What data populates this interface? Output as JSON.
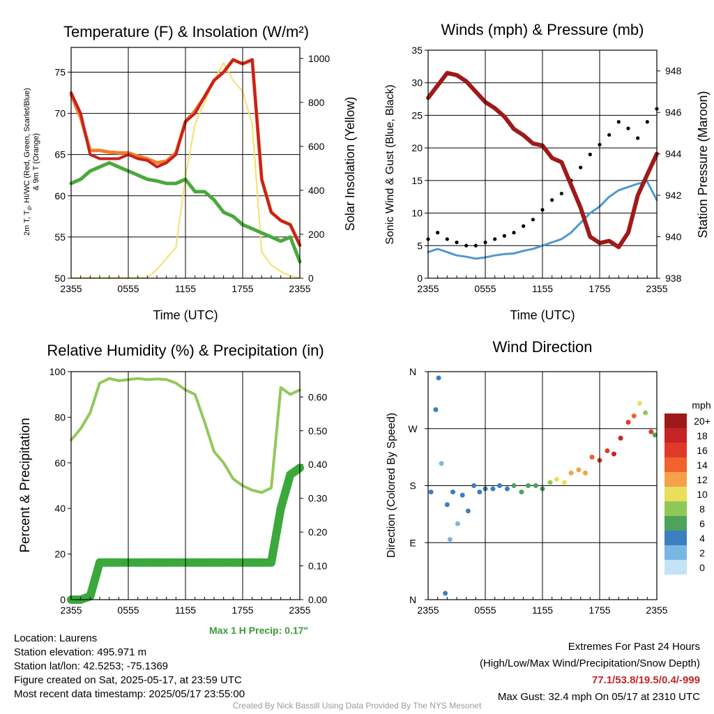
{
  "titles": {
    "temp": "Temperature (F) & Insolation (W/m²)",
    "wind": "Winds (mph) & Pressure (mb)",
    "rh": "Relative Humidity (%) & Precipitation (in)",
    "dir": "Wind Direction"
  },
  "axis_labels": {
    "temp_left_1": "2m T, T",
    "temp_left_sub": "d",
    "temp_left_2": ", HI/WC (Red, Green, Scarlet/Blue)",
    "temp_left_3": "& 9m T (Orange)",
    "temp_right": "Solar Insolation (Yellow)",
    "wind_left": "Sonic Wind & Gust (Blue, Black)",
    "wind_right": "Station Pressure (Maroon)",
    "rh_left": "Percent & Precipitation",
    "dir_left": "Direction (Colored By Speed)",
    "time": "Time (UTC)"
  },
  "time_ticks": [
    "2355",
    "0555",
    "1155",
    "1755",
    "2355"
  ],
  "colorbar": {
    "unit": "mph",
    "labels": [
      "20+",
      "18",
      "16",
      "14",
      "12",
      "10",
      "8",
      "6",
      "4",
      "2",
      "0"
    ],
    "colors": [
      "#9e1a1a",
      "#c42424",
      "#e0392b",
      "#f0622e",
      "#f5a04a",
      "#e8df5a",
      "#8ec957",
      "#4ea25a",
      "#3a7fc1",
      "#7ab6e2",
      "#c4e3f5"
    ]
  },
  "colors": {
    "temp": "#c8201e",
    "t9m": "#f07f2a",
    "dew": "#4aa83c",
    "wc": "#3a7fc1",
    "solar": "#f5e06a",
    "wind": "#4e98d2",
    "gust": "#000000",
    "pressure": "#9e1a1a",
    "rh": "#92c85a",
    "precip": "#3aa83a"
  },
  "info": {
    "location": "Location: Laurens",
    "elevation": "Station elevation: 495.971 m",
    "latlon": "Station lat/lon: 42.5253; -75.1369",
    "created": "Figure created on Sat, 2025-05-17, at 23:59 UTC",
    "recent": "Most recent data timestamp: 2025/05/17 23:55:00"
  },
  "max_precip": "Max 1 H Precip: 0.17\"",
  "extremes": {
    "title": "Extremes For Past 24 Hours",
    "subtitle": "(High/Low/Max Wind/Precipitation/Snow Depth)",
    "values": "77.1/53.8/19.5/0.4/-999",
    "gust": "Max Gust: 32.4 mph On 05/17 at 2310 UTC"
  },
  "credit": "Created By Nick Bassill Using Data Provided By The NYS Mesonet",
  "chart_data": [
    {
      "type": "line",
      "title": "Temperature (F) & Insolation (W/m²)",
      "xlabel": "Time (UTC)",
      "x": [
        0,
        1,
        2,
        3,
        4,
        5,
        6,
        7,
        8,
        9,
        10,
        11,
        12,
        13,
        14,
        15,
        16,
        17,
        18,
        19,
        20,
        21,
        22,
        23,
        24
      ],
      "ylim": [
        50,
        78
      ],
      "y2lim": [
        0,
        1050
      ],
      "series": [
        {
          "key": "temp",
          "axis": "left",
          "values": [
            72.5,
            70,
            65,
            64.5,
            64.5,
            64.5,
            65,
            64.5,
            64.3,
            63.5,
            64,
            65,
            69,
            70,
            72,
            74,
            75,
            76.5,
            76,
            76.5,
            62,
            58,
            57,
            56.5,
            54
          ]
        },
        {
          "key": "t9m",
          "axis": "left",
          "values": [
            72.3,
            69.5,
            65.5,
            65.5,
            65.3,
            65.2,
            65.2,
            64.8,
            64.5,
            64,
            64.2,
            65.2,
            69,
            70.3,
            72,
            74,
            75,
            76.5,
            76,
            76.5,
            62,
            58,
            57,
            56.5,
            54
          ]
        },
        {
          "key": "dew",
          "axis": "left",
          "values": [
            61.5,
            62,
            63,
            63.5,
            64,
            63.5,
            63,
            62.5,
            62,
            61.8,
            61.5,
            61.5,
            62,
            60.5,
            60.5,
            59.5,
            58,
            57.5,
            56.5,
            56,
            55.5,
            55,
            54.5,
            55,
            52
          ]
        },
        {
          "key": "solar",
          "axis": "right",
          "values": [
            2,
            2,
            2,
            2,
            2,
            2,
            2,
            2,
            2,
            40,
            90,
            140,
            460,
            700,
            800,
            900,
            980,
            900,
            850,
            700,
            120,
            60,
            30,
            10,
            2
          ]
        }
      ]
    },
    {
      "type": "line",
      "title": "Winds (mph) & Pressure (mb)",
      "xlabel": "Time (UTC)",
      "x": [
        0,
        1,
        2,
        3,
        4,
        5,
        6,
        7,
        8,
        9,
        10,
        11,
        12,
        13,
        14,
        15,
        16,
        17,
        18,
        19,
        20,
        21,
        22,
        23,
        24
      ],
      "ylim": [
        0,
        35
      ],
      "y2lim": [
        938,
        949
      ],
      "series": [
        {
          "key": "wind",
          "axis": "left",
          "values": [
            4,
            4.5,
            4,
            3.5,
            3.3,
            3,
            3.2,
            3.5,
            3.7,
            3.8,
            4.2,
            4.5,
            5,
            5.5,
            6,
            7,
            8.5,
            10,
            11,
            12.5,
            13.5,
            14,
            14.5,
            14.8,
            12
          ]
        },
        {
          "key": "gust",
          "axis": "left",
          "values": [
            6,
            7,
            6,
            5.5,
            5,
            5,
            5.5,
            6,
            6.5,
            7,
            8,
            9,
            10.5,
            12,
            13,
            15,
            17,
            19,
            20.5,
            22,
            24,
            23,
            21.5,
            24,
            26
          ]
        },
        {
          "key": "pressure",
          "axis": "right",
          "values": [
            946.7,
            947.3,
            947.9,
            947.8,
            947.5,
            947.0,
            946.5,
            946.2,
            945.8,
            945.2,
            944.9,
            944.5,
            944.4,
            943.8,
            943.6,
            942.5,
            941.4,
            940.0,
            939.7,
            939.8,
            939.5,
            940.2,
            942.0,
            943.0,
            944.0
          ]
        }
      ]
    },
    {
      "type": "line",
      "title": "Relative Humidity (%) & Precipitation (in)",
      "xlabel": "Time (UTC)",
      "x": [
        0,
        1,
        2,
        3,
        4,
        5,
        6,
        7,
        8,
        9,
        10,
        11,
        12,
        13,
        14,
        15,
        16,
        17,
        18,
        19,
        20,
        21,
        22,
        23,
        24
      ],
      "ylim": [
        0,
        100
      ],
      "y2lim": [
        0,
        0.675
      ],
      "series": [
        {
          "key": "rh",
          "axis": "left",
          "values": [
            70,
            75,
            82,
            95,
            97,
            96,
            96.5,
            97,
            96.5,
            96.8,
            96.5,
            95,
            92,
            90,
            78,
            65,
            60,
            53,
            50,
            48,
            47,
            49,
            93,
            90,
            92
          ]
        },
        {
          "key": "precip",
          "axis": "right",
          "values": [
            0,
            0,
            0.01,
            0.11,
            0.11,
            0.11,
            0.11,
            0.11,
            0.11,
            0.11,
            0.11,
            0.11,
            0.11,
            0.11,
            0.11,
            0.11,
            0.11,
            0.11,
            0.11,
            0.11,
            0.11,
            0.11,
            0.27,
            0.37,
            0.39
          ]
        }
      ]
    },
    {
      "type": "scatter",
      "title": "Wind Direction",
      "xlabel": "",
      "ylabel": "Direction (Colored By Speed)",
      "y_ticks": [
        "N",
        "E",
        "S",
        "W",
        "N"
      ],
      "ylim": [
        0,
        360
      ],
      "x": [
        0.3,
        0.8,
        1.1,
        1.4,
        1.8,
        2.0,
        2.3,
        2.6,
        3.1,
        3.6,
        4.2,
        4.8,
        5.4,
        6.0,
        6.8,
        7.5,
        8.3,
        9.0,
        9.8,
        10.5,
        11.3,
        12.0,
        12.8,
        13.5,
        14.3,
        15.0,
        15.8,
        16.5,
        17.2,
        18.0,
        18.8,
        19.5,
        20.2,
        21.0,
        21.6,
        22.2,
        22.8,
        23.4,
        23.8
      ],
      "y": [
        170,
        300,
        350,
        215,
        10,
        150,
        95,
        170,
        120,
        165,
        140,
        180,
        170,
        175,
        175,
        180,
        175,
        180,
        170,
        180,
        180,
        175,
        185,
        190,
        185,
        200,
        205,
        200,
        225,
        220,
        235,
        230,
        255,
        280,
        290,
        310,
        295,
        265,
        260
      ],
      "speed": [
        3,
        4,
        3,
        2,
        3,
        4,
        2,
        3,
        2,
        3,
        3,
        4,
        4,
        4,
        4,
        3,
        4,
        5,
        5,
        6,
        6,
        6,
        8,
        9,
        10,
        12,
        11,
        12,
        14,
        16,
        16,
        17,
        18,
        16,
        14,
        10,
        8,
        16,
        6
      ]
    }
  ]
}
